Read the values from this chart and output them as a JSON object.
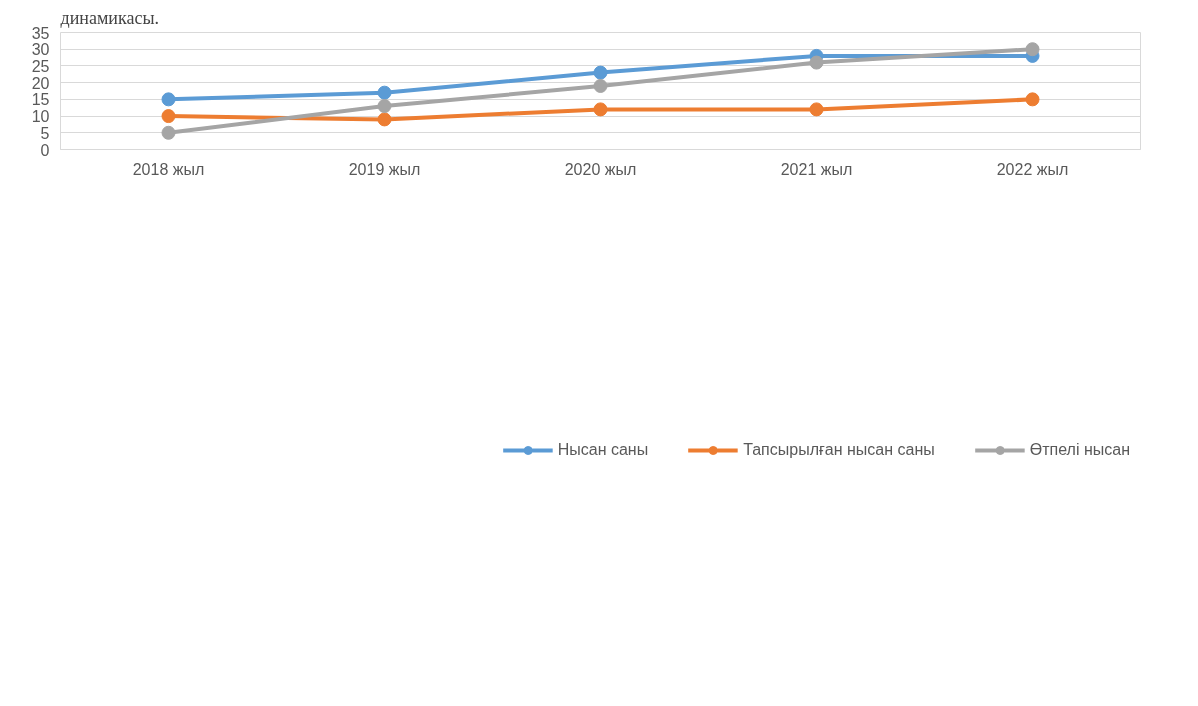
{
  "chart_data": {
    "type": "line",
    "title": "динамикасы.",
    "categories": [
      "2018 жыл",
      "2019 жыл",
      "2020 жыл",
      "2021 жыл",
      "2022 жыл"
    ],
    "series": [
      {
        "name": "Нысан саны",
        "color": "#5b9bd5",
        "values": [
          15,
          17,
          23,
          28,
          28
        ]
      },
      {
        "name": "Тапсырылған нысан саны",
        "color": "#ed7d31",
        "values": [
          10,
          9,
          12,
          12,
          15
        ]
      },
      {
        "name": "Өтпелі нысан",
        "color": "#a5a5a5",
        "values": [
          5,
          13,
          19,
          26,
          30
        ]
      }
    ],
    "ylim": [
      0,
      35
    ],
    "yticks": [
      0,
      5,
      10,
      15,
      20,
      25,
      30,
      35
    ],
    "grid": "y",
    "legend": "bottom",
    "marker": "circle",
    "line_style": "solid"
  }
}
